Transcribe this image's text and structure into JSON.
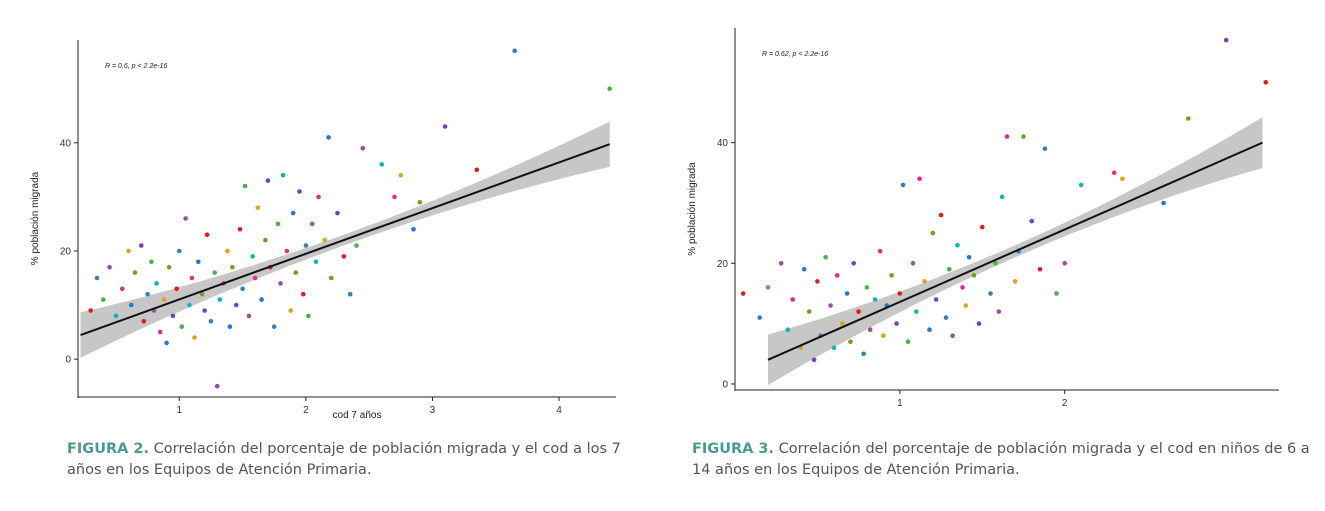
{
  "colors": [
    "#e41a1c",
    "#377eb8",
    "#4daf4a",
    "#984ea3",
    "#0fb5b5",
    "#e7298a",
    "#d9a51a",
    "#1f78d1",
    "#66a61e",
    "#7b3fb5"
  ],
  "line_color": "#111111",
  "band_color": "#bdbdbd",
  "chart_data": [
    {
      "type": "scatter",
      "title": "",
      "annotation": "R = 0.6, p < 2.2e-16",
      "xlabel": "cod 7 años",
      "ylabel": "% población migrada",
      "xlim": [
        0.2,
        4.45
      ],
      "ylim": [
        -7,
        59
      ],
      "xticks": [
        1,
        2,
        3,
        4
      ],
      "yticks": [
        0,
        20,
        40
      ],
      "regression": {
        "slope": 8.44,
        "intercept": 2.6,
        "x_range": [
          0.22,
          4.4
        ]
      },
      "points": [
        {
          "x": 0.3,
          "y": 9
        },
        {
          "x": 0.35,
          "y": 15
        },
        {
          "x": 0.4,
          "y": 11
        },
        {
          "x": 0.45,
          "y": 17
        },
        {
          "x": 0.5,
          "y": 8
        },
        {
          "x": 0.55,
          "y": 13
        },
        {
          "x": 0.6,
          "y": 20
        },
        {
          "x": 0.62,
          "y": 10
        },
        {
          "x": 0.65,
          "y": 16
        },
        {
          "x": 0.7,
          "y": 21
        },
        {
          "x": 0.72,
          "y": 7
        },
        {
          "x": 0.75,
          "y": 12
        },
        {
          "x": 0.78,
          "y": 18
        },
        {
          "x": 0.8,
          "y": 9
        },
        {
          "x": 0.82,
          "y": 14
        },
        {
          "x": 0.85,
          "y": 5
        },
        {
          "x": 0.88,
          "y": 11
        },
        {
          "x": 0.9,
          "y": 3
        },
        {
          "x": 0.92,
          "y": 17
        },
        {
          "x": 0.95,
          "y": 8
        },
        {
          "x": 0.98,
          "y": 13
        },
        {
          "x": 1.0,
          "y": 20
        },
        {
          "x": 1.02,
          "y": 6
        },
        {
          "x": 1.05,
          "y": 26
        },
        {
          "x": 1.08,
          "y": 10
        },
        {
          "x": 1.1,
          "y": 15
        },
        {
          "x": 1.12,
          "y": 4
        },
        {
          "x": 1.15,
          "y": 18
        },
        {
          "x": 1.18,
          "y": 12
        },
        {
          "x": 1.2,
          "y": 9
        },
        {
          "x": 1.22,
          "y": 23
        },
        {
          "x": 1.25,
          "y": 7
        },
        {
          "x": 1.28,
          "y": 16
        },
        {
          "x": 1.3,
          "y": -5
        },
        {
          "x": 1.32,
          "y": 11
        },
        {
          "x": 1.35,
          "y": 14
        },
        {
          "x": 1.38,
          "y": 20
        },
        {
          "x": 1.4,
          "y": 6
        },
        {
          "x": 1.42,
          "y": 17
        },
        {
          "x": 1.45,
          "y": 10
        },
        {
          "x": 1.48,
          "y": 24
        },
        {
          "x": 1.5,
          "y": 13
        },
        {
          "x": 1.52,
          "y": 32
        },
        {
          "x": 1.55,
          "y": 8
        },
        {
          "x": 1.58,
          "y": 19
        },
        {
          "x": 1.6,
          "y": 15
        },
        {
          "x": 1.62,
          "y": 28
        },
        {
          "x": 1.65,
          "y": 11
        },
        {
          "x": 1.68,
          "y": 22
        },
        {
          "x": 1.7,
          "y": 33
        },
        {
          "x": 1.72,
          "y": 17
        },
        {
          "x": 1.75,
          "y": 6
        },
        {
          "x": 1.78,
          "y": 25
        },
        {
          "x": 1.8,
          "y": 14
        },
        {
          "x": 1.82,
          "y": 34
        },
        {
          "x": 1.85,
          "y": 20
        },
        {
          "x": 1.88,
          "y": 9
        },
        {
          "x": 1.9,
          "y": 27
        },
        {
          "x": 1.92,
          "y": 16
        },
        {
          "x": 1.95,
          "y": 31
        },
        {
          "x": 1.98,
          "y": 12
        },
        {
          "x": 2.0,
          "y": 21
        },
        {
          "x": 2.02,
          "y": 8
        },
        {
          "x": 2.05,
          "y": 25
        },
        {
          "x": 2.08,
          "y": 18
        },
        {
          "x": 2.1,
          "y": 30
        },
        {
          "x": 2.15,
          "y": 22
        },
        {
          "x": 2.18,
          "y": 41
        },
        {
          "x": 2.2,
          "y": 15
        },
        {
          "x": 2.25,
          "y": 27
        },
        {
          "x": 2.3,
          "y": 19
        },
        {
          "x": 2.35,
          "y": 12
        },
        {
          "x": 2.4,
          "y": 21
        },
        {
          "x": 2.45,
          "y": 39
        },
        {
          "x": 2.6,
          "y": 36
        },
        {
          "x": 2.7,
          "y": 30
        },
        {
          "x": 2.75,
          "y": 34
        },
        {
          "x": 2.85,
          "y": 24
        },
        {
          "x": 2.9,
          "y": 29
        },
        {
          "x": 3.1,
          "y": 43
        },
        {
          "x": 3.35,
          "y": 35
        },
        {
          "x": 3.65,
          "y": 57
        },
        {
          "x": 4.4,
          "y": 50
        }
      ]
    },
    {
      "type": "scatter",
      "title": "",
      "annotation": "R = 0.62, p < 2.2e-16",
      "xlabel": "",
      "ylabel": "% población migrada",
      "xlim": [
        0.0,
        3.3
      ],
      "ylim": [
        -1,
        59
      ],
      "xticks": [
        1,
        2
      ],
      "yticks": [
        0,
        20,
        40
      ],
      "regression": {
        "slope": 12.0,
        "intercept": 1.6,
        "x_range": [
          0.2,
          3.2
        ]
      },
      "points": [
        {
          "x": 0.05,
          "y": 15
        },
        {
          "x": 0.15,
          "y": 11
        },
        {
          "x": 0.2,
          "y": 16
        },
        {
          "x": 0.28,
          "y": 20
        },
        {
          "x": 0.32,
          "y": 9
        },
        {
          "x": 0.35,
          "y": 14
        },
        {
          "x": 0.4,
          "y": 6
        },
        {
          "x": 0.42,
          "y": 19
        },
        {
          "x": 0.45,
          "y": 12
        },
        {
          "x": 0.48,
          "y": 4
        },
        {
          "x": 0.5,
          "y": 17
        },
        {
          "x": 0.52,
          "y": 8
        },
        {
          "x": 0.55,
          "y": 21
        },
        {
          "x": 0.58,
          "y": 13
        },
        {
          "x": 0.6,
          "y": 6
        },
        {
          "x": 0.62,
          "y": 18
        },
        {
          "x": 0.65,
          "y": 10
        },
        {
          "x": 0.68,
          "y": 15
        },
        {
          "x": 0.7,
          "y": 7
        },
        {
          "x": 0.72,
          "y": 20
        },
        {
          "x": 0.75,
          "y": 12
        },
        {
          "x": 0.78,
          "y": 5
        },
        {
          "x": 0.8,
          "y": 16
        },
        {
          "x": 0.82,
          "y": 9
        },
        {
          "x": 0.85,
          "y": 14
        },
        {
          "x": 0.88,
          "y": 22
        },
        {
          "x": 0.9,
          "y": 8
        },
        {
          "x": 0.92,
          "y": 13
        },
        {
          "x": 0.95,
          "y": 18
        },
        {
          "x": 0.98,
          "y": 10
        },
        {
          "x": 1.0,
          "y": 15
        },
        {
          "x": 1.02,
          "y": 33
        },
        {
          "x": 1.05,
          "y": 7
        },
        {
          "x": 1.08,
          "y": 20
        },
        {
          "x": 1.1,
          "y": 12
        },
        {
          "x": 1.12,
          "y": 34
        },
        {
          "x": 1.15,
          "y": 17
        },
        {
          "x": 1.18,
          "y": 9
        },
        {
          "x": 1.2,
          "y": 25
        },
        {
          "x": 1.22,
          "y": 14
        },
        {
          "x": 1.25,
          "y": 28
        },
        {
          "x": 1.28,
          "y": 11
        },
        {
          "x": 1.3,
          "y": 19
        },
        {
          "x": 1.32,
          "y": 8
        },
        {
          "x": 1.35,
          "y": 23
        },
        {
          "x": 1.38,
          "y": 16
        },
        {
          "x": 1.4,
          "y": 13
        },
        {
          "x": 1.42,
          "y": 21
        },
        {
          "x": 1.45,
          "y": 18
        },
        {
          "x": 1.48,
          "y": 10
        },
        {
          "x": 1.5,
          "y": 26
        },
        {
          "x": 1.55,
          "y": 15
        },
        {
          "x": 1.58,
          "y": 20
        },
        {
          "x": 1.6,
          "y": 12
        },
        {
          "x": 1.62,
          "y": 31
        },
        {
          "x": 1.65,
          "y": 41
        },
        {
          "x": 1.7,
          "y": 17
        },
        {
          "x": 1.72,
          "y": 22
        },
        {
          "x": 1.75,
          "y": 41
        },
        {
          "x": 1.8,
          "y": 27
        },
        {
          "x": 1.85,
          "y": 19
        },
        {
          "x": 1.88,
          "y": 39
        },
        {
          "x": 1.95,
          "y": 15
        },
        {
          "x": 2.0,
          "y": 20
        },
        {
          "x": 2.1,
          "y": 33
        },
        {
          "x": 2.3,
          "y": 35
        },
        {
          "x": 2.35,
          "y": 34
        },
        {
          "x": 2.6,
          "y": 30
        },
        {
          "x": 2.75,
          "y": 44
        },
        {
          "x": 2.98,
          "y": 57
        },
        {
          "x": 3.22,
          "y": 50
        }
      ]
    }
  ],
  "captions": [
    {
      "label": "FIGURA 2.",
      "text": "Correlación del porcentaje de población migrada y el cod a los 7 años en los Equipos de Atención Primaria."
    },
    {
      "label": "FIGURA 3.",
      "text": "Correlación del porcentaje de población migrada y el cod en niños de 6 a 14 años en los Equipos de Atención Primaria."
    }
  ]
}
